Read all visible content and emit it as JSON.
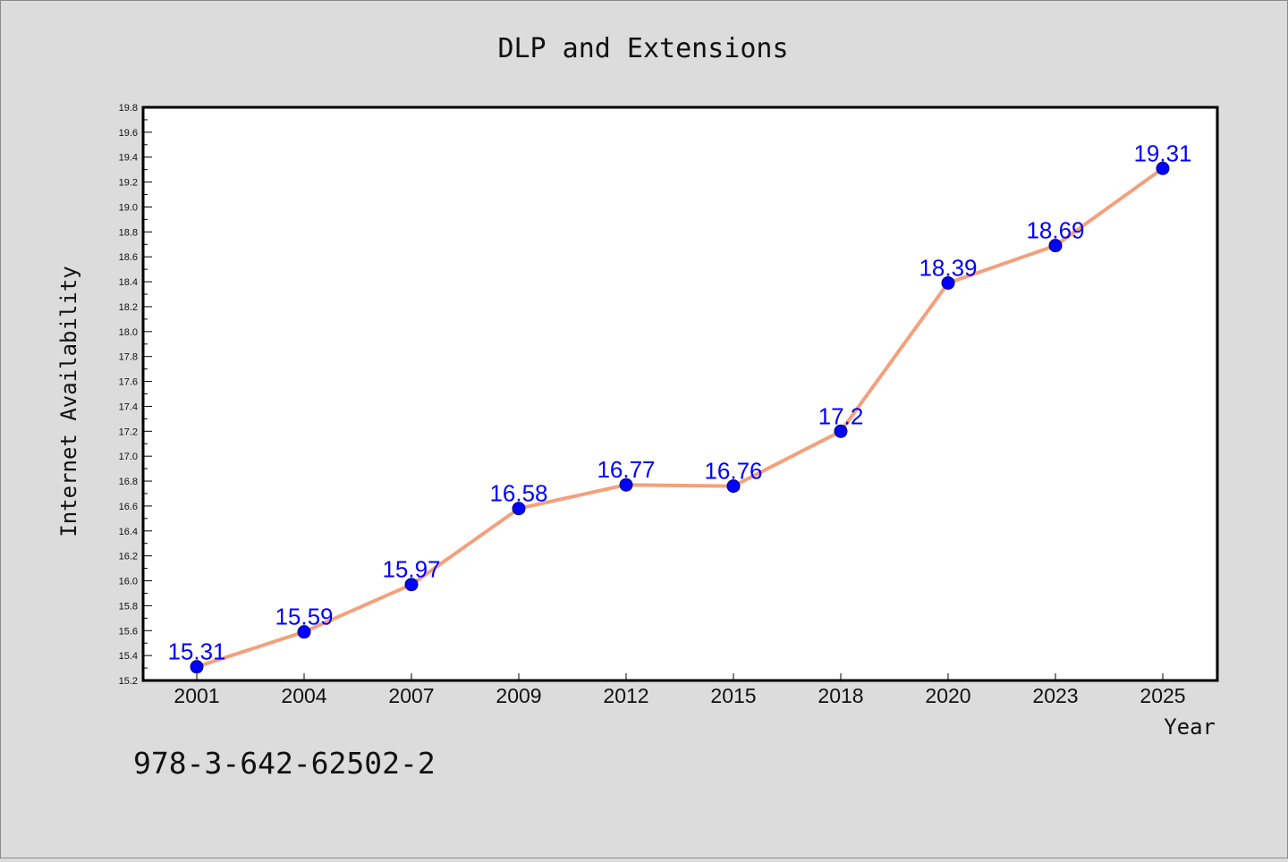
{
  "chart_data": {
    "type": "line",
    "title": "DLP and Extensions",
    "xlabel": "Year",
    "ylabel": "Internet Availability",
    "categories": [
      "2001",
      "2004",
      "2007",
      "2009",
      "2012",
      "2015",
      "2018",
      "2020",
      "2023",
      "2025"
    ],
    "series": [
      {
        "values": [
          15.31,
          15.59,
          15.97,
          16.58,
          16.77,
          16.76,
          17.2,
          18.39,
          18.69,
          19.31
        ],
        "labels": [
          "15.31",
          "15.59",
          "15.97",
          "16.58",
          "16.77",
          "16.76",
          "17.2",
          "18.39",
          "18.69",
          "19.31"
        ],
        "line_color": "#f4a07c",
        "marker_color": "#0000ff"
      }
    ],
    "ylim": [
      15.2,
      19.8
    ],
    "yticks": [
      "15.2",
      "15.4",
      "15.6",
      "15.8",
      "16.0",
      "16.2",
      "16.4",
      "16.6",
      "16.8",
      "17.0",
      "17.2",
      "17.4",
      "17.6",
      "17.8",
      "18.0",
      "18.2",
      "18.4",
      "18.6",
      "18.8",
      "19.0",
      "19.2",
      "19.4",
      "19.6",
      "19.8"
    ],
    "grid": false,
    "legend": "none"
  },
  "footer": {
    "text": "978-3-642-62502-2"
  },
  "colors": {
    "background": "#dcdcdc",
    "plot_background": "#ffffff",
    "axis": "#000000"
  }
}
